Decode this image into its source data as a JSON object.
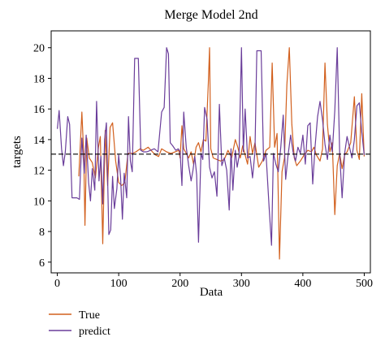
{
  "chart_data": {
    "type": "line",
    "title": "Merge Model 2nd",
    "xlabel": "Data",
    "ylabel": "targets",
    "xlim": [
      -10,
      510
    ],
    "ylim": [
      5.3,
      21.1
    ],
    "xticks": [
      0,
      100,
      200,
      300,
      400,
      500
    ],
    "yticks": [
      6,
      8,
      10,
      12,
      14,
      16,
      18,
      20
    ],
    "reference_line": {
      "y": 13.05,
      "style": "dashed",
      "color": "#000000"
    },
    "legend": {
      "placement": "bottom-left-outside"
    },
    "colors": {
      "true": "#d2601e",
      "predict": "#6a3d9a"
    },
    "series": [
      {
        "name": "True",
        "color": "#d2601e",
        "points": [
          [
            35,
            11.6
          ],
          [
            40,
            15.8
          ],
          [
            43,
            13.0
          ],
          [
            45,
            8.4
          ],
          [
            48,
            14.1
          ],
          [
            52,
            12.8
          ],
          [
            57,
            12.5
          ],
          [
            62,
            11.5
          ],
          [
            67,
            13.5
          ],
          [
            70,
            14.2
          ],
          [
            74,
            7.2
          ],
          [
            78,
            14.6
          ],
          [
            82,
            11.0
          ],
          [
            86,
            14.8
          ],
          [
            90,
            15.1
          ],
          [
            95,
            12.6
          ],
          [
            100,
            11.2
          ],
          [
            105,
            11.0
          ],
          [
            110,
            11.2
          ],
          [
            115,
            13.1
          ],
          [
            122,
            13.1
          ],
          [
            128,
            13.2
          ],
          [
            135,
            13.4
          ],
          [
            140,
            13.3
          ],
          [
            148,
            13.5
          ],
          [
            155,
            13.2
          ],
          [
            160,
            13.0
          ],
          [
            165,
            12.9
          ],
          [
            170,
            13.4
          ],
          [
            178,
            13.2
          ],
          [
            185,
            13.1
          ],
          [
            192,
            13.2
          ],
          [
            198,
            13.3
          ],
          [
            200,
            12.8
          ],
          [
            203,
            14.9
          ],
          [
            206,
            13.4
          ],
          [
            210,
            13.1
          ],
          [
            214,
            12.8
          ],
          [
            218,
            13.2
          ],
          [
            222,
            12.4
          ],
          [
            226,
            13.5
          ],
          [
            230,
            13.8
          ],
          [
            234,
            13.2
          ],
          [
            238,
            14.0
          ],
          [
            242,
            13.9
          ],
          [
            246,
            17.7
          ],
          [
            248,
            20.0
          ],
          [
            250,
            13.4
          ],
          [
            254,
            12.8
          ],
          [
            260,
            12.7
          ],
          [
            266,
            12.6
          ],
          [
            272,
            12.7
          ],
          [
            278,
            13.3
          ],
          [
            284,
            12.8
          ],
          [
            290,
            14.0
          ],
          [
            294,
            13.5
          ],
          [
            298,
            12.8
          ],
          [
            302,
            13.6
          ],
          [
            306,
            13.0
          ],
          [
            310,
            12.4
          ],
          [
            314,
            14.2
          ],
          [
            318,
            13.1
          ],
          [
            322,
            13.8
          ],
          [
            328,
            12.2
          ],
          [
            334,
            12.6
          ],
          [
            340,
            13.3
          ],
          [
            346,
            13.5
          ],
          [
            350,
            19.0
          ],
          [
            354,
            13.5
          ],
          [
            358,
            14.4
          ],
          [
            362,
            6.2
          ],
          [
            366,
            11.9
          ],
          [
            370,
            12.8
          ],
          [
            374,
            17.6
          ],
          [
            378,
            20.0
          ],
          [
            382,
            15.0
          ],
          [
            386,
            12.8
          ],
          [
            390,
            12.3
          ],
          [
            396,
            12.6
          ],
          [
            402,
            13.0
          ],
          [
            408,
            13.3
          ],
          [
            414,
            13.2
          ],
          [
            418,
            13.5
          ],
          [
            422,
            13.0
          ],
          [
            428,
            12.6
          ],
          [
            432,
            13.4
          ],
          [
            436,
            19.0
          ],
          [
            440,
            15.0
          ],
          [
            444,
            13.2
          ],
          [
            448,
            13.8
          ],
          [
            452,
            9.1
          ],
          [
            456,
            12.3
          ],
          [
            460,
            13.1
          ],
          [
            464,
            12.1
          ],
          [
            468,
            13.0
          ],
          [
            472,
            13.2
          ],
          [
            478,
            13.8
          ],
          [
            484,
            16.8
          ],
          [
            488,
            13.3
          ],
          [
            492,
            12.7
          ],
          [
            496,
            17.0
          ],
          [
            500,
            12.9
          ]
        ]
      },
      {
        "name": "predict",
        "color": "#6a3d9a",
        "points": [
          [
            0,
            14.7
          ],
          [
            3,
            15.9
          ],
          [
            7,
            13.4
          ],
          [
            10,
            12.3
          ],
          [
            13,
            13.2
          ],
          [
            17,
            15.5
          ],
          [
            20,
            15.0
          ],
          [
            24,
            10.2
          ],
          [
            28,
            10.2
          ],
          [
            32,
            10.2
          ],
          [
            36,
            10.1
          ],
          [
            40,
            14.1
          ],
          [
            44,
            11.8
          ],
          [
            47,
            14.3
          ],
          [
            51,
            11.2
          ],
          [
            54,
            10.0
          ],
          [
            57,
            12.1
          ],
          [
            61,
            10.7
          ],
          [
            64,
            16.5
          ],
          [
            68,
            11.3
          ],
          [
            71,
            12.9
          ],
          [
            74,
            9.8
          ],
          [
            77,
            14.0
          ],
          [
            80,
            15.1
          ],
          [
            84,
            7.8
          ],
          [
            87,
            8.1
          ],
          [
            90,
            11.6
          ],
          [
            93,
            9.5
          ],
          [
            97,
            10.8
          ],
          [
            100,
            13.0
          ],
          [
            103,
            11.6
          ],
          [
            106,
            8.8
          ],
          [
            109,
            11.8
          ],
          [
            113,
            10.2
          ],
          [
            116,
            15.5
          ],
          [
            119,
            12.6
          ],
          [
            122,
            11.9
          ],
          [
            126,
            19.3
          ],
          [
            132,
            19.3
          ],
          [
            136,
            13.3
          ],
          [
            140,
            13.2
          ],
          [
            146,
            13.2
          ],
          [
            152,
            13.3
          ],
          [
            158,
            13.4
          ],
          [
            164,
            13.2
          ],
          [
            170,
            15.8
          ],
          [
            174,
            16.1
          ],
          [
            178,
            20.0
          ],
          [
            181,
            19.6
          ],
          [
            184,
            13.8
          ],
          [
            188,
            13.6
          ],
          [
            193,
            13.3
          ],
          [
            197,
            13.4
          ],
          [
            200,
            13.2
          ],
          [
            203,
            11.0
          ],
          [
            206,
            15.8
          ],
          [
            210,
            13.5
          ],
          [
            214,
            12.3
          ],
          [
            218,
            11.3
          ],
          [
            221,
            12.0
          ],
          [
            224,
            12.9
          ],
          [
            227,
            11.7
          ],
          [
            230,
            7.3
          ],
          [
            234,
            13.1
          ],
          [
            237,
            12.7
          ],
          [
            240,
            16.1
          ],
          [
            244,
            15.3
          ],
          [
            248,
            12.2
          ],
          [
            252,
            11.5
          ],
          [
            256,
            11.9
          ],
          [
            260,
            10.3
          ],
          [
            264,
            16.3
          ],
          [
            268,
            12.3
          ],
          [
            272,
            12.8
          ],
          [
            276,
            12.0
          ],
          [
            280,
            9.4
          ],
          [
            283,
            13.4
          ],
          [
            286,
            10.7
          ],
          [
            290,
            13.3
          ],
          [
            293,
            12.2
          ],
          [
            296,
            12.9
          ],
          [
            300,
            20.0
          ],
          [
            303,
            13.2
          ],
          [
            306,
            16.0
          ],
          [
            310,
            12.8
          ],
          [
            314,
            12.9
          ],
          [
            318,
            11.5
          ],
          [
            322,
            13.2
          ],
          [
            325,
            19.8
          ],
          [
            332,
            19.8
          ],
          [
            336,
            12.6
          ],
          [
            340,
            13.1
          ],
          [
            345,
            9.6
          ],
          [
            349,
            7.1
          ],
          [
            352,
            13.1
          ],
          [
            356,
            12.4
          ],
          [
            360,
            11.9
          ],
          [
            364,
            13.5
          ],
          [
            368,
            15.6
          ],
          [
            372,
            11.4
          ],
          [
            376,
            13.0
          ],
          [
            380,
            14.3
          ],
          [
            384,
            13.2
          ],
          [
            388,
            12.6
          ],
          [
            392,
            13.5
          ],
          [
            396,
            13.1
          ],
          [
            400,
            14.3
          ],
          [
            404,
            12.4
          ],
          [
            408,
            14.9
          ],
          [
            412,
            15.1
          ],
          [
            416,
            11.1
          ],
          [
            420,
            13.6
          ],
          [
            424,
            15.5
          ],
          [
            428,
            16.5
          ],
          [
            432,
            15.3
          ],
          [
            436,
            13.7
          ],
          [
            440,
            12.7
          ],
          [
            444,
            14.3
          ],
          [
            448,
            13.2
          ],
          [
            452,
            15.9
          ],
          [
            456,
            20.0
          ],
          [
            460,
            13.1
          ],
          [
            464,
            10.2
          ],
          [
            468,
            13.1
          ],
          [
            472,
            14.2
          ],
          [
            476,
            13.5
          ],
          [
            480,
            12.8
          ],
          [
            484,
            14.0
          ],
          [
            488,
            16.2
          ],
          [
            492,
            16.4
          ],
          [
            496,
            14.5
          ],
          [
            500,
            13.0
          ]
        ]
      }
    ]
  }
}
